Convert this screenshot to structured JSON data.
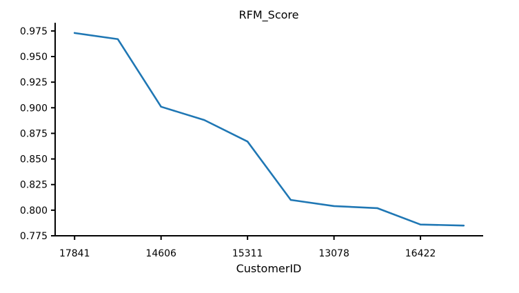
{
  "chart_data": {
    "type": "line",
    "title": "RFM_Score",
    "xlabel": "CustomerID",
    "ylabel": "",
    "x_tick_labels": [
      {
        "index": 0,
        "label": "17841"
      },
      {
        "index": 2,
        "label": "14606"
      },
      {
        "index": 4,
        "label": "15311"
      },
      {
        "index": 6,
        "label": "13078"
      },
      {
        "index": 8,
        "label": "16422"
      }
    ],
    "y_ticks": [
      0.775,
      0.8,
      0.825,
      0.85,
      0.875,
      0.9,
      0.925,
      0.95,
      0.975
    ],
    "ylim": [
      0.775,
      0.983
    ],
    "xlim": [
      -0.45,
      9.45
    ],
    "grid": false,
    "legend": "none",
    "series": [
      {
        "color": "#1f77b4",
        "values": [
          0.973,
          0.967,
          0.901,
          0.888,
          0.867,
          0.81,
          0.804,
          0.802,
          0.786,
          0.785
        ]
      }
    ]
  }
}
